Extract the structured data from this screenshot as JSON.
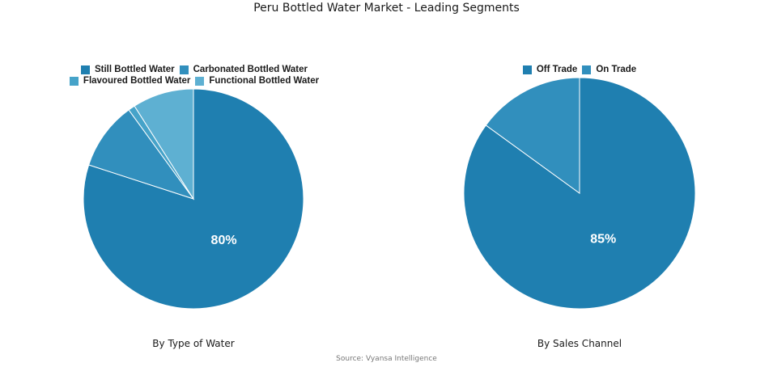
{
  "title": "Peru Bottled Water Market - Leading Segments",
  "source": "Source: Vyansa Intelligence",
  "chart_data": [
    {
      "type": "pie",
      "caption": "By Type of Water",
      "legend_placement": "top",
      "start_angle_deg": 0,
      "direction": "clockwise",
      "labels": [
        "Still Bottled Water",
        "Carbonated Bottled Water",
        "Flavoured Bottled Water",
        "Functional Bottled Water"
      ],
      "values": [
        80,
        10,
        1,
        9
      ],
      "colors": [
        "#1f7fb0",
        "#318fbd",
        "#46a3c9",
        "#5eb0d2"
      ],
      "value_labels": [
        "80%",
        "",
        "",
        ""
      ]
    },
    {
      "type": "pie",
      "caption": "By Sales Channel",
      "legend_placement": "top",
      "start_angle_deg": 0,
      "direction": "clockwise",
      "labels": [
        "Off Trade",
        "On Trade"
      ],
      "values": [
        85,
        15
      ],
      "colors": [
        "#1f7fb0",
        "#318fbd"
      ],
      "value_labels": [
        "85%",
        ""
      ]
    }
  ]
}
